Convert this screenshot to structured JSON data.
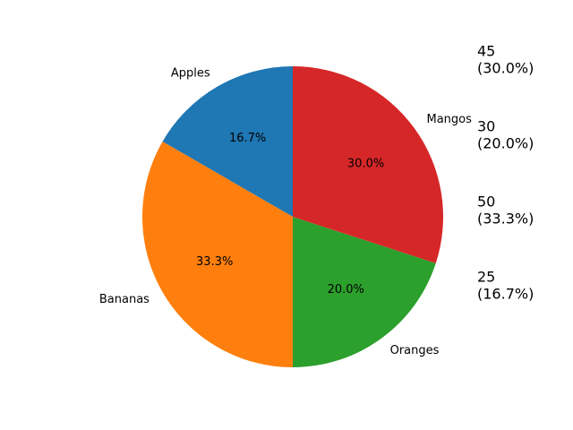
{
  "chart_data": {
    "type": "pie",
    "categories": [
      "Apples",
      "Bananas",
      "Oranges",
      "Mangos"
    ],
    "values": [
      25,
      50,
      30,
      45
    ],
    "percent_labels": [
      "16.7%",
      "33.3%",
      "20.0%",
      "30.0%"
    ],
    "colors": [
      "#1f77b4",
      "#ff7f0e",
      "#2ca02c",
      "#d62728"
    ],
    "start_angle_deg": 90,
    "direction": "counterclockwise",
    "annotations": [
      {
        "value": "45",
        "percent": "(30.0%)"
      },
      {
        "value": "30",
        "percent": "(20.0%)"
      },
      {
        "value": "50",
        "percent": "(33.3%)"
      },
      {
        "value": "25",
        "percent": "(16.7%)"
      }
    ]
  }
}
